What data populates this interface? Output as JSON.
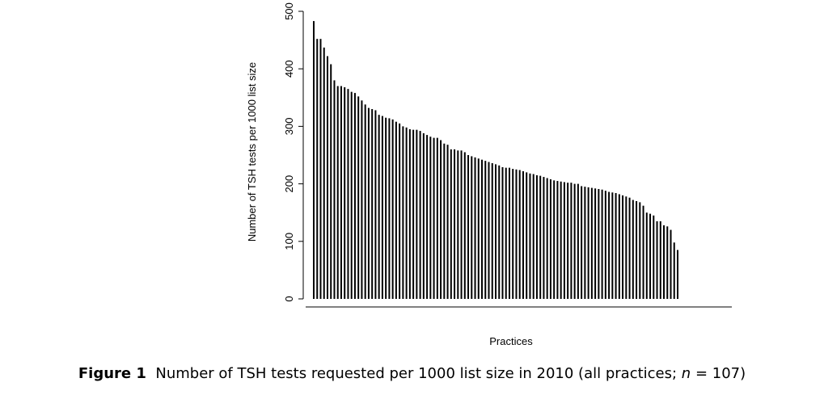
{
  "chart_data": {
    "type": "bar",
    "ylabel": "Number of TSH tests per 1000 list size",
    "xlabel": "Practices",
    "color": "#000000",
    "ylim": [
      0,
      500
    ],
    "yticks": [
      0,
      100,
      200,
      300,
      400,
      500
    ],
    "grid": false,
    "categories": [
      null,
      null,
      null,
      null,
      null,
      null,
      null,
      null,
      null,
      null,
      null,
      null,
      null,
      null,
      null,
      null,
      null,
      null,
      null,
      null,
      null,
      null,
      null,
      null,
      null,
      null,
      null,
      null,
      null,
      null,
      null,
      null,
      null,
      null,
      null,
      null,
      null,
      null,
      null,
      null,
      null,
      null,
      null,
      null,
      null,
      null,
      null,
      null,
      null,
      null,
      null,
      null,
      null,
      null,
      null,
      null,
      null,
      null,
      null,
      null,
      null,
      null,
      null,
      null,
      null,
      null,
      null,
      null,
      null,
      null,
      null,
      null,
      null,
      null,
      null,
      null,
      null,
      null,
      null,
      null,
      null,
      null,
      null,
      null,
      null,
      null,
      null,
      null,
      null,
      null,
      null,
      null,
      null,
      null,
      null,
      null,
      null,
      null,
      null,
      null,
      null,
      null,
      null,
      null,
      null,
      null,
      null
    ],
    "values": [
      483,
      452,
      452,
      437,
      422,
      408,
      380,
      370,
      370,
      368,
      365,
      360,
      358,
      352,
      345,
      338,
      332,
      330,
      328,
      320,
      318,
      315,
      314,
      312,
      308,
      305,
      300,
      298,
      295,
      294,
      294,
      292,
      288,
      285,
      282,
      280,
      280,
      276,
      270,
      268,
      260,
      260,
      258,
      258,
      255,
      250,
      248,
      246,
      244,
      242,
      240,
      238,
      236,
      234,
      232,
      229,
      228,
      228,
      226,
      225,
      224,
      222,
      220,
      218,
      217,
      215,
      214,
      212,
      210,
      208,
      206,
      205,
      204,
      203,
      202,
      202,
      200,
      200,
      196,
      195,
      194,
      193,
      192,
      191,
      190,
      188,
      186,
      185,
      184,
      182,
      180,
      178,
      176,
      172,
      170,
      168,
      162,
      150,
      148,
      145,
      135,
      135,
      128,
      126,
      120,
      98,
      85
    ]
  },
  "figure_caption": {
    "label": "Figure 1",
    "text": "Number of TSH tests requested per 1000 list size in 2010 (all practices; ",
    "italic": "n",
    "end": " = 107)"
  }
}
